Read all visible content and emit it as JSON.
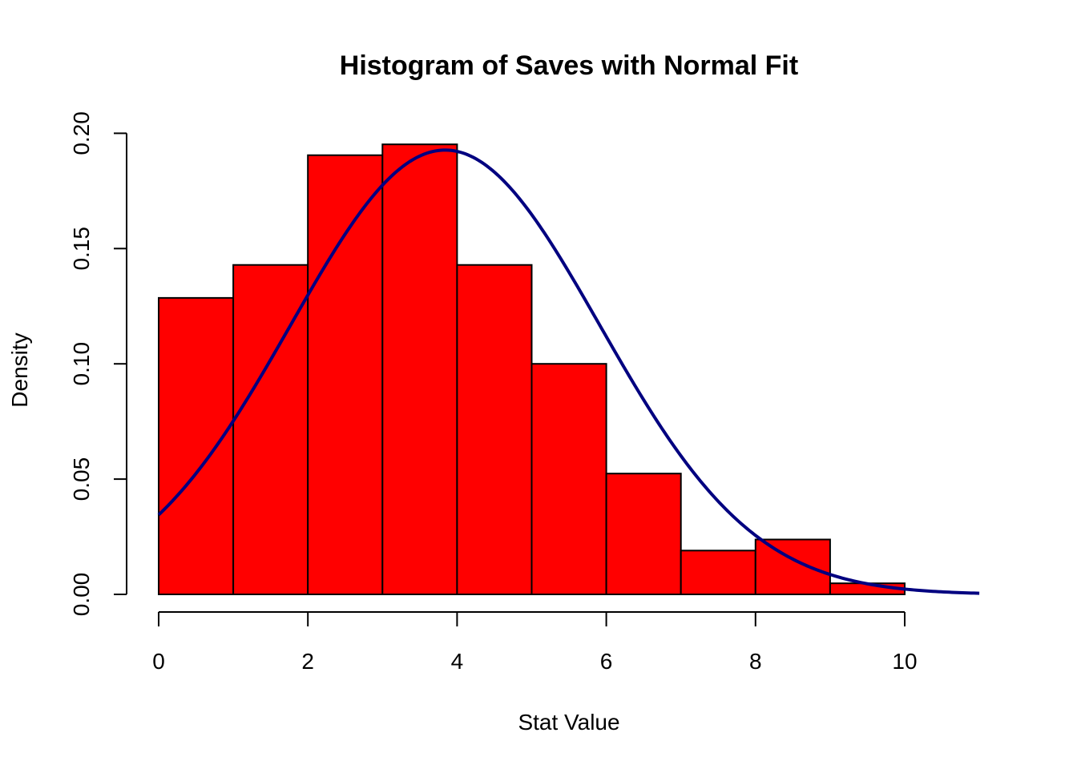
{
  "chart_data": {
    "type": "bar",
    "title": "Histogram of Saves with Normal Fit",
    "xlabel": "Stat Value",
    "ylabel": "Density",
    "bins": [
      [
        0,
        1
      ],
      [
        1,
        2
      ],
      [
        2,
        3
      ],
      [
        3,
        4
      ],
      [
        4,
        5
      ],
      [
        5,
        6
      ],
      [
        6,
        7
      ],
      [
        7,
        8
      ],
      [
        8,
        9
      ],
      [
        9,
        10
      ]
    ],
    "values": [
      0.1286,
      0.1429,
      0.1905,
      0.1952,
      0.1429,
      0.1,
      0.0524,
      0.019,
      0.0238,
      0.0048
    ],
    "xlim": [
      0,
      11
    ],
    "ylim": [
      0,
      0.2
    ],
    "x_ticks": [
      "0",
      "2",
      "4",
      "6",
      "8",
      "10"
    ],
    "y_ticks": [
      "0.00",
      "0.05",
      "0.10",
      "0.15",
      "0.20"
    ],
    "normal_fit": {
      "mean": 3.84,
      "sd": 2.07,
      "x_range": [
        0,
        11
      ]
    },
    "colors": {
      "bar_fill": "#ff0000",
      "bar_border": "#000000",
      "fit_line": "#000080"
    },
    "grid": false
  }
}
